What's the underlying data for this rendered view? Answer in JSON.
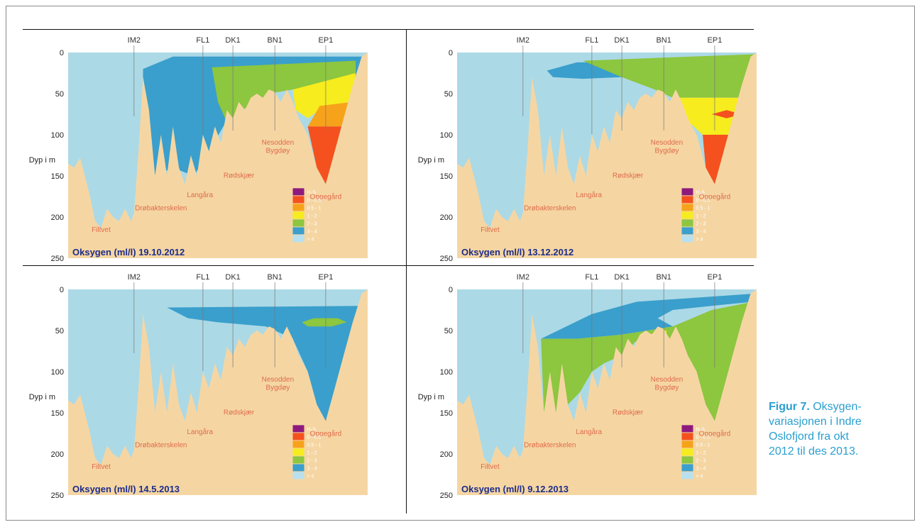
{
  "caption": {
    "label": "Figur 7.",
    "lines": [
      "Oksygen-",
      "variasjonen i Indre",
      "Oslofjord fra okt",
      "2012 til des 2013."
    ]
  },
  "chart_data": [
    {
      "type": "area",
      "title": "Oksygen (ml/l) 19.10.2012",
      "ylabel": "Dyp i m",
      "ylim": [
        0,
        250
      ],
      "yticks": [
        0,
        50,
        100,
        150,
        200,
        250
      ],
      "stations": [
        "IM2",
        "FL1",
        "DK1",
        "BN1",
        "EP1"
      ],
      "places": [
        "Filtvet",
        "Drøbakterskelen",
        "Langåra",
        "Rødskjær",
        "Nesodden",
        "Bygdøy",
        "Oppegård"
      ],
      "legend": [
        "H₂S",
        "0 - 0.5",
        "0.5 - 1",
        "1 - 2",
        "2 - 3",
        "3 - 4",
        "> 4"
      ]
    },
    {
      "type": "area",
      "title": "Oksygen (ml/l) 13.12.2012",
      "ylabel": "Dyp i m",
      "ylim": [
        0,
        250
      ],
      "yticks": [
        0,
        50,
        100,
        150,
        200,
        250
      ],
      "stations": [
        "IM2",
        "FL1",
        "DK1",
        "BN1",
        "EP1"
      ],
      "places": [
        "Filtvet",
        "Drøbakterskelen",
        "Langåra",
        "Rødskjær",
        "Nesodden",
        "Bygdøy",
        "Oppegård"
      ],
      "legend": [
        "H₂S",
        "0 - 0.5",
        "0.5 - 1",
        "1 - 2",
        "2 - 3",
        "3 - 4",
        "> 4"
      ]
    },
    {
      "type": "area",
      "title": "Oksygen (ml/l) 14.5.2013",
      "ylabel": "Dyp i m",
      "ylim": [
        0,
        250
      ],
      "yticks": [
        0,
        50,
        100,
        150,
        200,
        250
      ],
      "stations": [
        "IM2",
        "FL1",
        "DK1",
        "BN1",
        "EP1"
      ],
      "places": [
        "Filtvet",
        "Drøbakterskelen",
        "Langåra",
        "Rødskjær",
        "Nesodden",
        "Bygdøy",
        "Oppegård"
      ],
      "legend": [
        "H₂S",
        "0 - 0.5",
        "0.5 - 1",
        "1 - 2",
        "2 - 3",
        "3 - 4",
        "> 4"
      ]
    },
    {
      "type": "area",
      "title": "Oksygen (ml/l) 9.12.2013",
      "ylabel": "Dyp i m",
      "ylim": [
        0,
        250
      ],
      "yticks": [
        0,
        50,
        100,
        150,
        200,
        250
      ],
      "stations": [
        "IM2",
        "FL1",
        "DK1",
        "BN1",
        "EP1"
      ],
      "places": [
        "Filtvet",
        "Drøbakterskelen",
        "Langåra",
        "Rødskjær",
        "Nesodden",
        "Bygdøy",
        "Oppegård"
      ],
      "legend": [
        "H₂S",
        "0 - 0.5",
        "0.5 - 1",
        "1 - 2",
        "2 - 3",
        "3 - 4",
        "> 4"
      ]
    }
  ],
  "colors": {
    "background_water": "#acd9e6",
    "seabed": "#f5d6a3",
    "h2s": "#8e1a7e",
    "c_0_05": "#f4511e",
    "c_05_1": "#f7a21b",
    "c_1_2": "#f6ec1e",
    "c_2_3": "#8dc63f",
    "c_3_4": "#3a9fcc",
    "c_gt4": "#b9e0ef"
  }
}
